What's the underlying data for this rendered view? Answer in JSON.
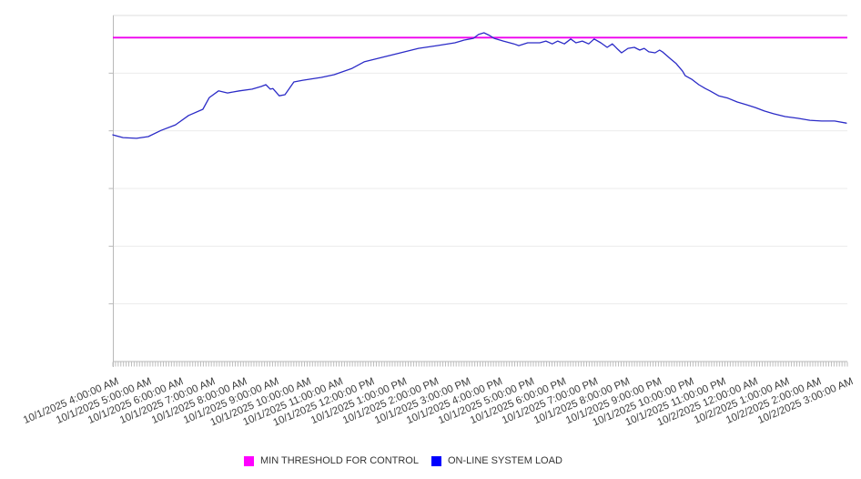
{
  "chart_data": {
    "type": "line",
    "title": "",
    "x_axis": {
      "start_label": "10/1/2025 4:00:00 AM",
      "end_label": "10/2/2025 3:00:00 AM",
      "minor_ticks_per_hour": 12,
      "tick_labels": [
        "10/1/2025 4:00:00 AM",
        "10/1/2025 5:00:00 AM",
        "10/1/2025 6:00:00 AM",
        "10/1/2025 7:00:00 AM",
        "10/1/2025 8:00:00 AM",
        "10/1/2025 9:00:00 AM",
        "10/1/2025 10:00:00 AM",
        "10/1/2025 11:00:00 AM",
        "10/1/2025 12:00:00 PM",
        "10/1/2025 1:00:00 PM",
        "10/1/2025 2:00:00 PM",
        "10/1/2025 3:00:00 PM",
        "10/1/2025 4:00:00 PM",
        "10/1/2025 5:00:00 PM",
        "10/1/2025 6:00:00 PM",
        "10/1/2025 7:00:00 PM",
        "10/1/2025 8:00:00 PM",
        "10/1/2025 9:00:00 PM",
        "10/1/2025 10:00:00 PM",
        "10/1/2025 11:00:00 PM",
        "10/2/2025 12:00:00 AM",
        "10/2/2025 1:00:00 AM",
        "10/2/2025 2:00:00 AM",
        "10/2/2025 3:00:00 AM"
      ]
    },
    "y_axis": {
      "min": 0,
      "max": 100,
      "gridline_intervals": 6,
      "tick_labels_visible": false
    },
    "grid": "horizontal",
    "legend_position": "bottom-center",
    "series": [
      {
        "name": "MIN THRESHOLD FOR CONTROL",
        "type": "constant",
        "color": "#ee00ee",
        "value": 93.6
      },
      {
        "name": "ON-LINE SYSTEM LOAD",
        "type": "line",
        "color": "#2b2bc7",
        "x_unit": "hours since 10/1/2025 4:00:00 AM",
        "x_hours": [
          0,
          0.32,
          0.74,
          1.11,
          1.51,
          1.96,
          2.37,
          2.82,
          3.02,
          3.31,
          3.59,
          3.96,
          4.36,
          4.65,
          4.79,
          4.93,
          5.01,
          5.21,
          5.39,
          5.67,
          5.95,
          6.53,
          6.93,
          7.49,
          7.87,
          8.43,
          9.01,
          9.57,
          10.15,
          10.71,
          11.0,
          11.29,
          11.45,
          11.62,
          11.8,
          11.94,
          12.23,
          12.56,
          12.71,
          12.99,
          13.37,
          13.56,
          13.76,
          13.93,
          14.14,
          14.34,
          14.5,
          14.7,
          14.9,
          15.07,
          15.28,
          15.48,
          15.64,
          15.78,
          15.93,
          16.13,
          16.33,
          16.5,
          16.64,
          16.78,
          16.98,
          17.12,
          17.21,
          17.47,
          17.64,
          17.84,
          17.92,
          18.12,
          18.35,
          18.55,
          18.7,
          18.97,
          19.26,
          19.55,
          19.84,
          20.12,
          20.4,
          20.69,
          21.05,
          21.45,
          21.83,
          22.19,
          22.6,
          22.97
        ],
        "values": [
          65.5,
          64.7,
          64.5,
          65.0,
          66.8,
          68.4,
          71.1,
          72.9,
          76.3,
          78.2,
          77.6,
          78.2,
          78.7,
          79.5,
          80.0,
          78.7,
          78.9,
          76.8,
          77.1,
          80.8,
          81.3,
          82.1,
          82.9,
          84.7,
          86.6,
          87.9,
          89.2,
          90.5,
          91.3,
          92.1,
          92.9,
          93.4,
          94.5,
          95.0,
          94.2,
          93.4,
          92.6,
          91.8,
          91.3,
          92.1,
          92.1,
          92.6,
          91.8,
          92.6,
          91.8,
          93.2,
          92.1,
          92.6,
          91.8,
          93.2,
          92.1,
          90.8,
          91.8,
          90.5,
          89.2,
          90.5,
          90.8,
          90.0,
          90.5,
          89.5,
          89.2,
          90.0,
          89.5,
          87.4,
          86.1,
          83.9,
          82.6,
          81.6,
          80.0,
          78.9,
          78.2,
          76.8,
          76.1,
          75.0,
          74.2,
          73.4,
          72.4,
          71.6,
          70.8,
          70.3,
          69.7,
          69.5,
          69.5,
          68.9
        ]
      }
    ],
    "legend": {
      "items": [
        {
          "label": "MIN THRESHOLD FOR CONTROL",
          "color": "#ff00ff"
        },
        {
          "label": "ON-LINE SYSTEM LOAD",
          "color": "#0000ff"
        }
      ]
    }
  },
  "colors": {
    "background": "#ffffff",
    "grid_inner": "#ebebeb",
    "grid_top": "#dcdcdc",
    "axis": "#b9b9b9",
    "tick": "#bdbdbd",
    "label_text": "#3d3d3d"
  }
}
